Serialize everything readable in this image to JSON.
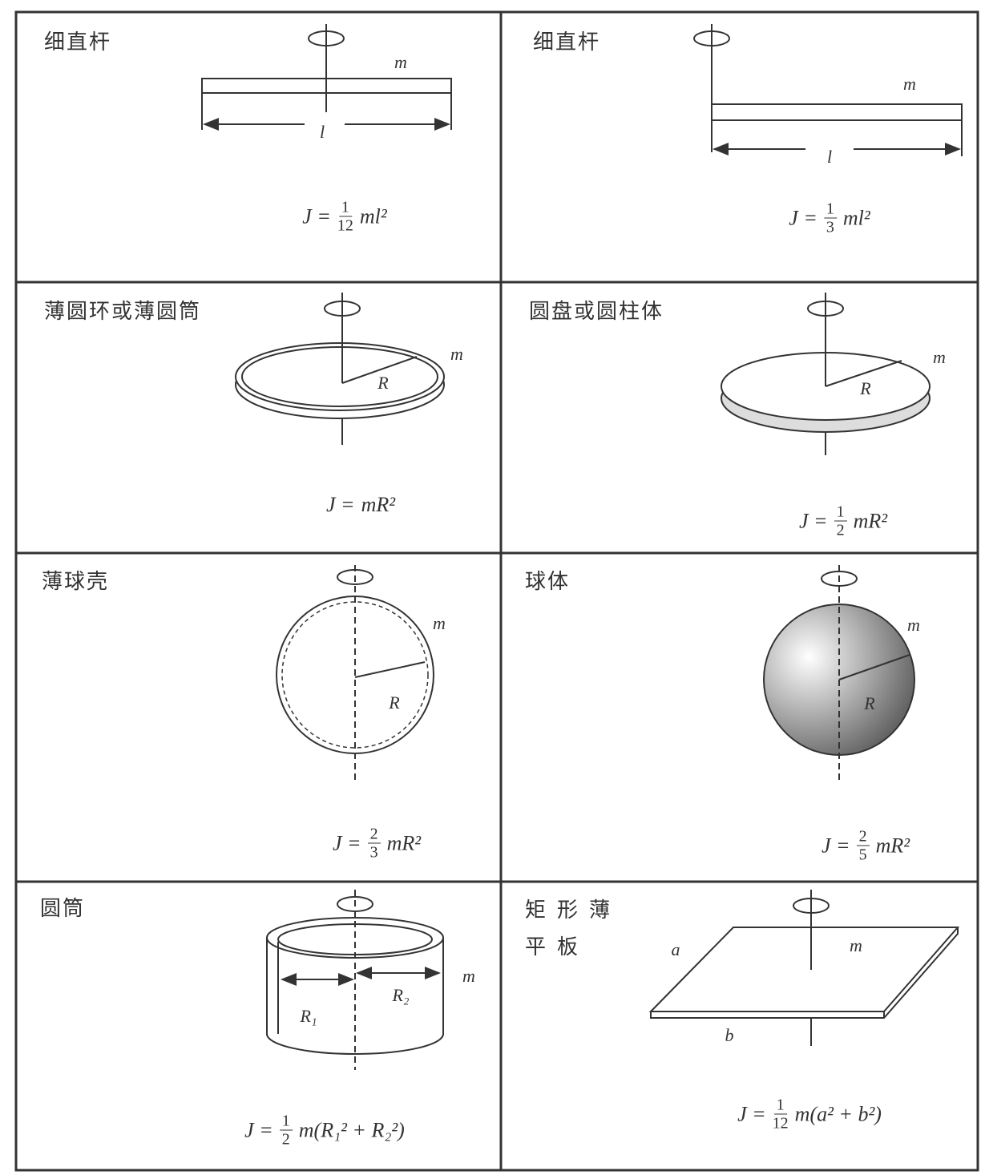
{
  "cells": [
    {
      "label": "细直杆",
      "diagram_labels": [
        "m",
        "l"
      ],
      "formula": {
        "lhs": "J =",
        "fraction": {
          "num": "1",
          "den": "12"
        },
        "rhs": "ml²"
      }
    },
    {
      "label": "细直杆",
      "diagram_labels": [
        "m",
        "l"
      ],
      "formula": {
        "lhs": "J =",
        "fraction": {
          "num": "1",
          "den": "3"
        },
        "rhs": "ml²"
      }
    },
    {
      "label": "薄圆环或薄圆筒",
      "diagram_labels": [
        "m",
        "R"
      ],
      "formula": {
        "lhs": "J =",
        "rhs": "mR²"
      }
    },
    {
      "label": "圆盘或圆柱体",
      "diagram_labels": [
        "m",
        "R"
      ],
      "formula": {
        "lhs": "J =",
        "fraction": {
          "num": "1",
          "den": "2"
        },
        "rhs": "mR²"
      }
    },
    {
      "label": "薄球壳",
      "diagram_labels": [
        "m",
        "R"
      ],
      "formula": {
        "lhs": "J =",
        "fraction": {
          "num": "2",
          "den": "3"
        },
        "rhs": "mR²"
      }
    },
    {
      "label": "球体",
      "diagram_labels": [
        "m",
        "R"
      ],
      "formula": {
        "lhs": "J =",
        "fraction": {
          "num": "2",
          "den": "5"
        },
        "rhs": "mR²"
      }
    },
    {
      "label": "圆筒",
      "diagram_labels": [
        "m",
        "R₁",
        "R₂"
      ],
      "formula": {
        "lhs": "J =",
        "fraction": {
          "num": "1",
          "den": "2"
        },
        "rhs": "m(R₁² + R₂²)"
      }
    },
    {
      "label": "矩形薄平板",
      "diagram_labels": [
        "a",
        "m",
        "b"
      ],
      "formula": {
        "lhs": "J =",
        "fraction": {
          "num": "1",
          "den": "12"
        },
        "rhs": "m(a² + b²)"
      }
    }
  ]
}
